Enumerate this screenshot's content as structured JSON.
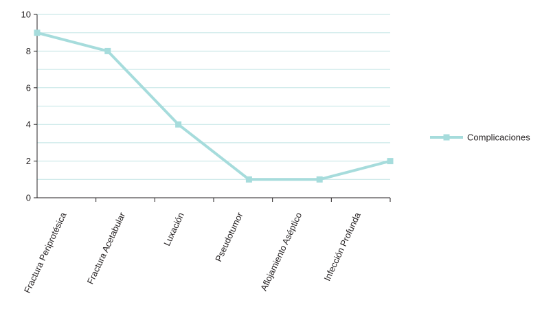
{
  "chart_data": {
    "type": "line",
    "title": "",
    "xlabel": "",
    "ylabel": "",
    "categories": [
      "Fractura Periprotésica",
      "Fractura Acetabular",
      "Luxación",
      "Pseudotumor",
      "Aflojamiento Aséptico",
      "Infección Profunda"
    ],
    "series": [
      {
        "name": "Complicaciones",
        "values": [
          9,
          8,
          4,
          1,
          1,
          2
        ],
        "color": "#a6dcdc"
      }
    ],
    "ylim": [
      0,
      10
    ],
    "yticks": [
      0,
      2,
      4,
      6,
      8,
      10
    ],
    "grid": true,
    "grid_color": "#bfe3e3",
    "axis_color": "#231f20",
    "legend_position": "right"
  }
}
